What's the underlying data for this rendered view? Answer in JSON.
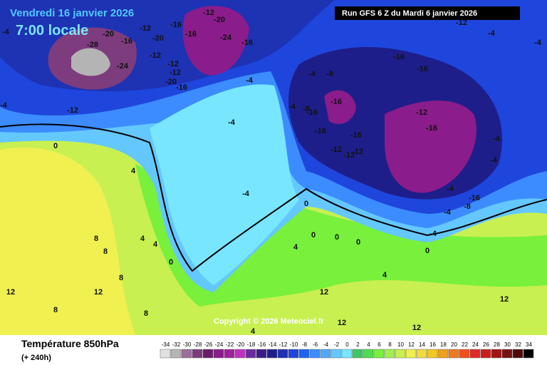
{
  "header": {
    "date": "Vendredi 16 janvier 2026",
    "time": "7:00 locale",
    "run": "Run GFS 6 Z du Mardi 6 janvier 2026"
  },
  "copyright": "Copyright © 2026 Meteociel.fr",
  "footer": {
    "title": "Température 850hPa",
    "lead": "(+ 240h)"
  },
  "legend": {
    "values": [
      -34,
      -32,
      -30,
      -28,
      -26,
      -24,
      -22,
      -20,
      -18,
      -16,
      -14,
      -12,
      -10,
      -8,
      -6,
      -4,
      -2,
      0,
      2,
      4,
      6,
      8,
      10,
      12,
      14,
      16,
      18,
      20,
      22,
      24,
      26,
      28,
      30,
      32,
      34
    ],
    "colors": [
      "#e0e0e0",
      "#b4b4b4",
      "#9a6f9a",
      "#7d3c7d",
      "#6a1b6a",
      "#8b1c8b",
      "#a020a0",
      "#c030c0",
      "#6c2aa0",
      "#3c1a8c",
      "#1e1e8a",
      "#1e32b4",
      "#1e46dc",
      "#1e64f0",
      "#3c8cff",
      "#50a8ff",
      "#64c8ff",
      "#78e6ff",
      "#3cc864",
      "#50dc50",
      "#78f03c",
      "#a0f050",
      "#c8f050",
      "#f0f050",
      "#f0dc3c",
      "#f0c828",
      "#f0a01e",
      "#f0781e",
      "#f0501e",
      "#e02828",
      "#c81e1e",
      "#a01414",
      "#781010",
      "#500a0a",
      "#000000"
    ]
  },
  "map": {
    "labels": [
      -20,
      -28,
      -16,
      -24,
      -12,
      -20,
      -12,
      -16,
      -12,
      -20,
      -16,
      -24,
      -16,
      -12,
      -12,
      -20,
      -16,
      -12,
      -4,
      -4,
      0,
      4,
      -4,
      -4,
      -4,
      -4,
      -8,
      -16,
      -16,
      -16,
      -12,
      -12,
      -12,
      -16,
      -16,
      -16,
      -12,
      -16,
      -4,
      -8,
      -12,
      -4,
      -4,
      -4,
      -4,
      -4,
      -4,
      -8,
      -16,
      -4,
      0,
      0,
      4,
      0,
      0,
      0,
      4,
      0,
      4,
      8,
      8,
      8,
      12,
      12,
      12,
      12,
      12,
      12,
      8,
      8,
      4,
      4
    ]
  }
}
